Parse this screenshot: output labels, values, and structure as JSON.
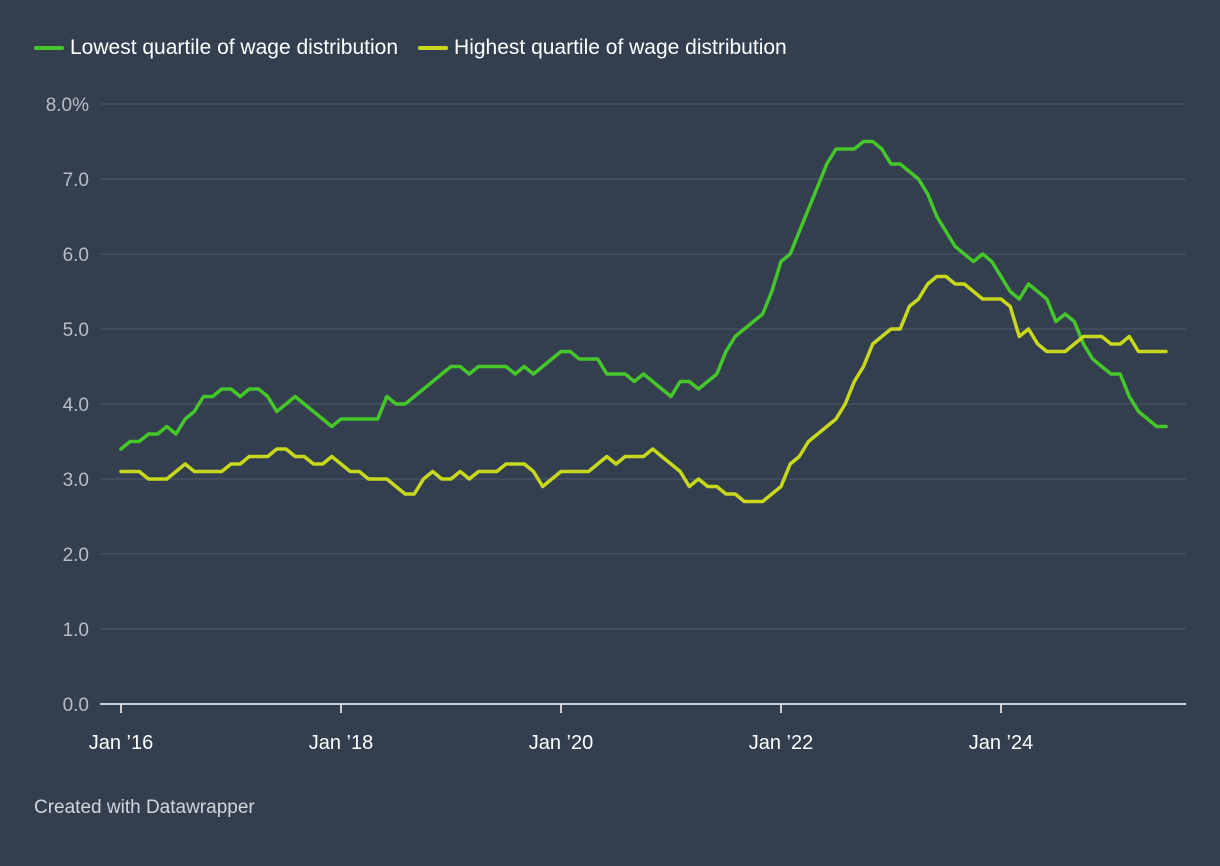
{
  "colors": {
    "background": "#333f4f",
    "gridline": "#4d5868",
    "axis": "#ffffff",
    "tick_label_y": "#b9bec6",
    "tick_label_x": "#ffffff",
    "series_lowest": "#45c72a",
    "series_highest": "#c8d81a"
  },
  "footer": {
    "credit": "Created with Datawrapper"
  },
  "chart_data": {
    "type": "line",
    "title": "",
    "xlabel": "",
    "ylabel": "",
    "x_range": [
      "2016-01",
      "2025-07"
    ],
    "ylim": [
      0,
      8
    ],
    "y_ticks": [
      {
        "value": 0,
        "label": "0.0"
      },
      {
        "value": 1,
        "label": "1.0"
      },
      {
        "value": 2,
        "label": "2.0"
      },
      {
        "value": 3,
        "label": "3.0"
      },
      {
        "value": 4,
        "label": "4.0"
      },
      {
        "value": 5,
        "label": "5.0"
      },
      {
        "value": 6,
        "label": "6.0"
      },
      {
        "value": 7,
        "label": "7.0"
      },
      {
        "value": 8,
        "label": "8.0%"
      }
    ],
    "x_ticks": [
      {
        "date": "2016-01",
        "label": "Jan ’16"
      },
      {
        "date": "2018-01",
        "label": "Jan ’18"
      },
      {
        "date": "2020-01",
        "label": "Jan ’20"
      },
      {
        "date": "2022-01",
        "label": "Jan ’22"
      },
      {
        "date": "2024-01",
        "label": "Jan ’24"
      }
    ],
    "grid": true,
    "legend_position": "top-left",
    "series": [
      {
        "name": "Lowest quartile of wage distribution",
        "color": "#45c72a",
        "x": [
          "2016-01",
          "2016-02",
          "2016-03",
          "2016-04",
          "2016-05",
          "2016-06",
          "2016-07",
          "2016-08",
          "2016-09",
          "2016-10",
          "2016-11",
          "2016-12",
          "2017-01",
          "2017-02",
          "2017-03",
          "2017-04",
          "2017-05",
          "2017-06",
          "2017-07",
          "2017-08",
          "2017-09",
          "2017-10",
          "2017-11",
          "2017-12",
          "2018-01",
          "2018-02",
          "2018-03",
          "2018-04",
          "2018-05",
          "2018-06",
          "2018-07",
          "2018-08",
          "2018-09",
          "2018-10",
          "2018-11",
          "2018-12",
          "2019-01",
          "2019-02",
          "2019-03",
          "2019-04",
          "2019-05",
          "2019-06",
          "2019-07",
          "2019-08",
          "2019-09",
          "2019-10",
          "2019-11",
          "2019-12",
          "2020-01",
          "2020-02",
          "2020-03",
          "2020-04",
          "2020-05",
          "2020-06",
          "2020-07",
          "2020-08",
          "2020-09",
          "2020-10",
          "2020-11",
          "2020-12",
          "2021-01",
          "2021-02",
          "2021-03",
          "2021-04",
          "2021-05",
          "2021-06",
          "2021-07",
          "2021-08",
          "2021-09",
          "2021-10",
          "2021-11",
          "2021-12",
          "2022-01",
          "2022-02",
          "2022-03",
          "2022-04",
          "2022-05",
          "2022-06",
          "2022-07",
          "2022-08",
          "2022-09",
          "2022-10",
          "2022-11",
          "2022-12",
          "2023-01",
          "2023-02",
          "2023-03",
          "2023-04",
          "2023-05",
          "2023-06",
          "2023-07",
          "2023-08",
          "2023-09",
          "2023-10",
          "2023-11",
          "2023-12",
          "2024-01",
          "2024-02",
          "2024-03",
          "2024-04",
          "2024-05",
          "2024-06",
          "2024-07",
          "2024-08",
          "2024-09",
          "2024-10",
          "2024-11",
          "2024-12",
          "2025-01",
          "2025-02",
          "2025-03",
          "2025-04",
          "2025-05",
          "2025-06",
          "2025-07"
        ],
        "y": [
          3.4,
          3.5,
          3.5,
          3.6,
          3.6,
          3.7,
          3.6,
          3.8,
          3.9,
          4.1,
          4.1,
          4.2,
          4.2,
          4.1,
          4.2,
          4.2,
          4.1,
          3.9,
          4.0,
          4.1,
          4.0,
          3.9,
          3.8,
          3.7,
          3.8,
          3.8,
          3.8,
          3.8,
          3.8,
          4.1,
          4.0,
          4.0,
          4.1,
          4.2,
          4.3,
          4.4,
          4.5,
          4.5,
          4.4,
          4.5,
          4.5,
          4.5,
          4.5,
          4.4,
          4.5,
          4.4,
          4.5,
          4.6,
          4.7,
          4.7,
          4.6,
          4.6,
          4.6,
          4.4,
          4.4,
          4.4,
          4.3,
          4.4,
          4.3,
          4.2,
          4.1,
          4.3,
          4.3,
          4.2,
          4.3,
          4.4,
          4.7,
          4.9,
          5.0,
          5.1,
          5.2,
          5.5,
          5.9,
          6.0,
          6.3,
          6.6,
          6.9,
          7.2,
          7.4,
          7.4,
          7.4,
          7.5,
          7.5,
          7.4,
          7.2,
          7.2,
          7.1,
          7.0,
          6.8,
          6.5,
          6.3,
          6.1,
          6.0,
          5.9,
          6.0,
          5.9,
          5.7,
          5.5,
          5.4,
          5.6,
          5.5,
          5.4,
          5.1,
          5.2,
          5.1,
          4.8,
          4.6,
          4.5,
          4.4,
          4.4,
          4.1,
          3.9,
          3.8,
          3.7,
          3.7
        ]
      },
      {
        "name": "Highest quartile of wage distribution",
        "color": "#c8d81a",
        "x": [
          "2016-01",
          "2016-02",
          "2016-03",
          "2016-04",
          "2016-05",
          "2016-06",
          "2016-07",
          "2016-08",
          "2016-09",
          "2016-10",
          "2016-11",
          "2016-12",
          "2017-01",
          "2017-02",
          "2017-03",
          "2017-04",
          "2017-05",
          "2017-06",
          "2017-07",
          "2017-08",
          "2017-09",
          "2017-10",
          "2017-11",
          "2017-12",
          "2018-01",
          "2018-02",
          "2018-03",
          "2018-04",
          "2018-05",
          "2018-06",
          "2018-07",
          "2018-08",
          "2018-09",
          "2018-10",
          "2018-11",
          "2018-12",
          "2019-01",
          "2019-02",
          "2019-03",
          "2019-04",
          "2019-05",
          "2019-06",
          "2019-07",
          "2019-08",
          "2019-09",
          "2019-10",
          "2019-11",
          "2019-12",
          "2020-01",
          "2020-02",
          "2020-03",
          "2020-04",
          "2020-05",
          "2020-06",
          "2020-07",
          "2020-08",
          "2020-09",
          "2020-10",
          "2020-11",
          "2020-12",
          "2021-01",
          "2021-02",
          "2021-03",
          "2021-04",
          "2021-05",
          "2021-06",
          "2021-07",
          "2021-08",
          "2021-09",
          "2021-10",
          "2021-11",
          "2021-12",
          "2022-01",
          "2022-02",
          "2022-03",
          "2022-04",
          "2022-05",
          "2022-06",
          "2022-07",
          "2022-08",
          "2022-09",
          "2022-10",
          "2022-11",
          "2022-12",
          "2023-01",
          "2023-02",
          "2023-03",
          "2023-04",
          "2023-05",
          "2023-06",
          "2023-07",
          "2023-08",
          "2023-09",
          "2023-10",
          "2023-11",
          "2023-12",
          "2024-01",
          "2024-02",
          "2024-03",
          "2024-04",
          "2024-05",
          "2024-06",
          "2024-07",
          "2024-08",
          "2024-09",
          "2024-10",
          "2024-11",
          "2024-12",
          "2025-01",
          "2025-02",
          "2025-03",
          "2025-04",
          "2025-05",
          "2025-06",
          "2025-07"
        ],
        "y": [
          3.1,
          3.1,
          3.1,
          3.0,
          3.0,
          3.0,
          3.1,
          3.2,
          3.1,
          3.1,
          3.1,
          3.1,
          3.2,
          3.2,
          3.3,
          3.3,
          3.3,
          3.4,
          3.4,
          3.3,
          3.3,
          3.2,
          3.2,
          3.3,
          3.2,
          3.1,
          3.1,
          3.0,
          3.0,
          3.0,
          2.9,
          2.8,
          2.8,
          3.0,
          3.1,
          3.0,
          3.0,
          3.1,
          3.0,
          3.1,
          3.1,
          3.1,
          3.2,
          3.2,
          3.2,
          3.1,
          2.9,
          3.0,
          3.1,
          3.1,
          3.1,
          3.1,
          3.2,
          3.3,
          3.2,
          3.3,
          3.3,
          3.3,
          3.4,
          3.3,
          3.2,
          3.1,
          2.9,
          3.0,
          2.9,
          2.9,
          2.8,
          2.8,
          2.7,
          2.7,
          2.7,
          2.8,
          2.9,
          3.2,
          3.3,
          3.5,
          3.6,
          3.7,
          3.8,
          4.0,
          4.3,
          4.5,
          4.8,
          4.9,
          5.0,
          5.0,
          5.3,
          5.4,
          5.6,
          5.7,
          5.7,
          5.6,
          5.6,
          5.5,
          5.4,
          5.4,
          5.4,
          5.3,
          4.9,
          5.0,
          4.8,
          4.7,
          4.7,
          4.7,
          4.8,
          4.9,
          4.9,
          4.9,
          4.8,
          4.8,
          4.9,
          4.7,
          4.7,
          4.7,
          4.7
        ]
      }
    ]
  }
}
